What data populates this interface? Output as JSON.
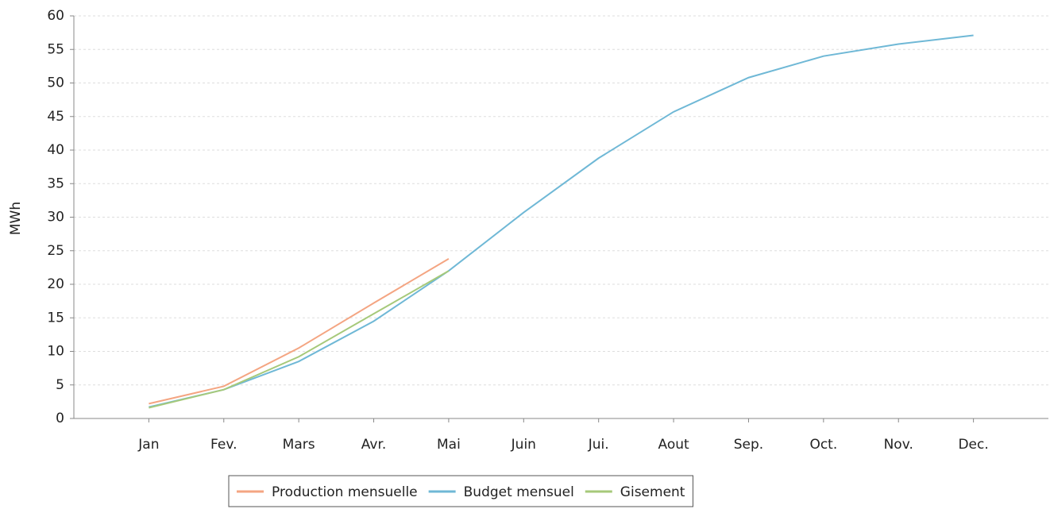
{
  "chart_data": {
    "type": "line",
    "y_label": "MWh",
    "categories": [
      "Jan",
      "Fev.",
      "Mars",
      "Avr.",
      "Mai",
      "Juin",
      "Jui.",
      "Aout",
      "Sep.",
      "Oct.",
      "Nov.",
      "Dec."
    ],
    "series": [
      {
        "name": "Production mensuelle",
        "color": "#f4a582",
        "values": [
          2.2,
          4.8,
          10.5,
          17.2,
          23.8,
          null,
          null,
          null,
          null,
          null,
          null,
          null
        ]
      },
      {
        "name": "Budget mensuel",
        "color": "#6fb8d6",
        "values": [
          1.7,
          4.3,
          8.5,
          14.5,
          22,
          30.7,
          38.8,
          45.7,
          50.8,
          54,
          55.8,
          57.1
        ]
      },
      {
        "name": "Gisement",
        "color": "#a6c97a",
        "values": [
          1.6,
          4.3,
          9.2,
          15.6,
          22,
          null,
          null,
          null,
          null,
          null,
          null,
          null
        ]
      }
    ],
    "ylim": [
      0,
      60
    ],
    "yticks": [
      0,
      5,
      10,
      15,
      20,
      25,
      30,
      35,
      40,
      45,
      50,
      55,
      60
    ],
    "grid": true
  }
}
